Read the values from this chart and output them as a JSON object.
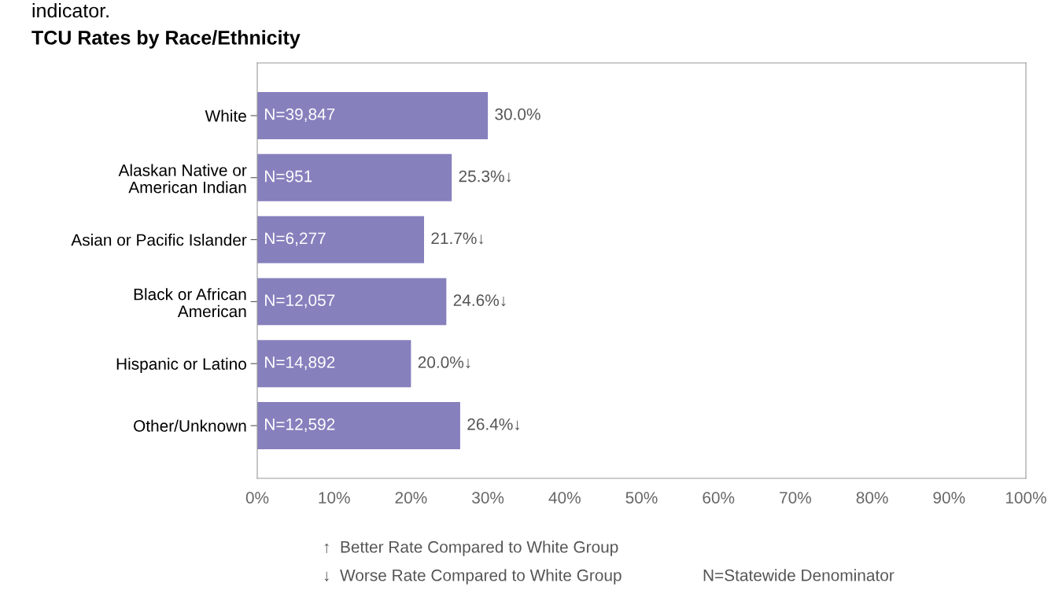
{
  "chart_data": {
    "type": "bar",
    "orientation": "horizontal",
    "title": "TCU Rates by Race/Ethnicity",
    "categories": [
      "White",
      "Alaskan Native or\nAmerican Indian",
      "Asian or Pacific Islander",
      "Black or African\nAmerican",
      "Hispanic or Latino",
      "Other/Unknown"
    ],
    "values": [
      30.0,
      25.3,
      21.7,
      24.6,
      20.0,
      26.4
    ],
    "value_labels": [
      "30.0%",
      "25.3%↓",
      "21.7%↓",
      "24.6%↓",
      "20.0%↓",
      "26.4%↓"
    ],
    "color": "#8680bd",
    "xlim": [
      0,
      100
    ],
    "xticks": [
      {
        "value": 0,
        "label": "0%"
      },
      {
        "value": 10,
        "label": "10%"
      },
      {
        "value": 20,
        "label": "20%"
      },
      {
        "value": 30,
        "label": "30%"
      },
      {
        "value": 40,
        "label": "40%"
      },
      {
        "value": 50,
        "label": "50%"
      },
      {
        "value": 60,
        "label": "60%"
      },
      {
        "value": 70,
        "label": "70%"
      },
      {
        "value": 80,
        "label": "80%"
      },
      {
        "value": 90,
        "label": "90%"
      },
      {
        "value": 100,
        "label": "100%"
      }
    ],
    "grid": false,
    "annotations": [
      "indicator.",
      {
        "text": "N=39,847",
        "y": "White"
      },
      {
        "text": "N=951",
        "y": "Alaskan Native or\nAmerican Indian"
      },
      {
        "text": "N=6,277",
        "y": "Asian or Pacific Islander"
      },
      {
        "text": "N=12,057",
        "y": "Black or African\nAmerican"
      },
      {
        "text": "N=14,892",
        "y": "Hispanic or Latino"
      },
      {
        "text": "N=12,592",
        "y": "Other/Unknown"
      },
      "↑  Better Rate Compared to White Group",
      "↓  Worse Rate Compared to White Group",
      "N=Statewide Denominator"
    ]
  }
}
